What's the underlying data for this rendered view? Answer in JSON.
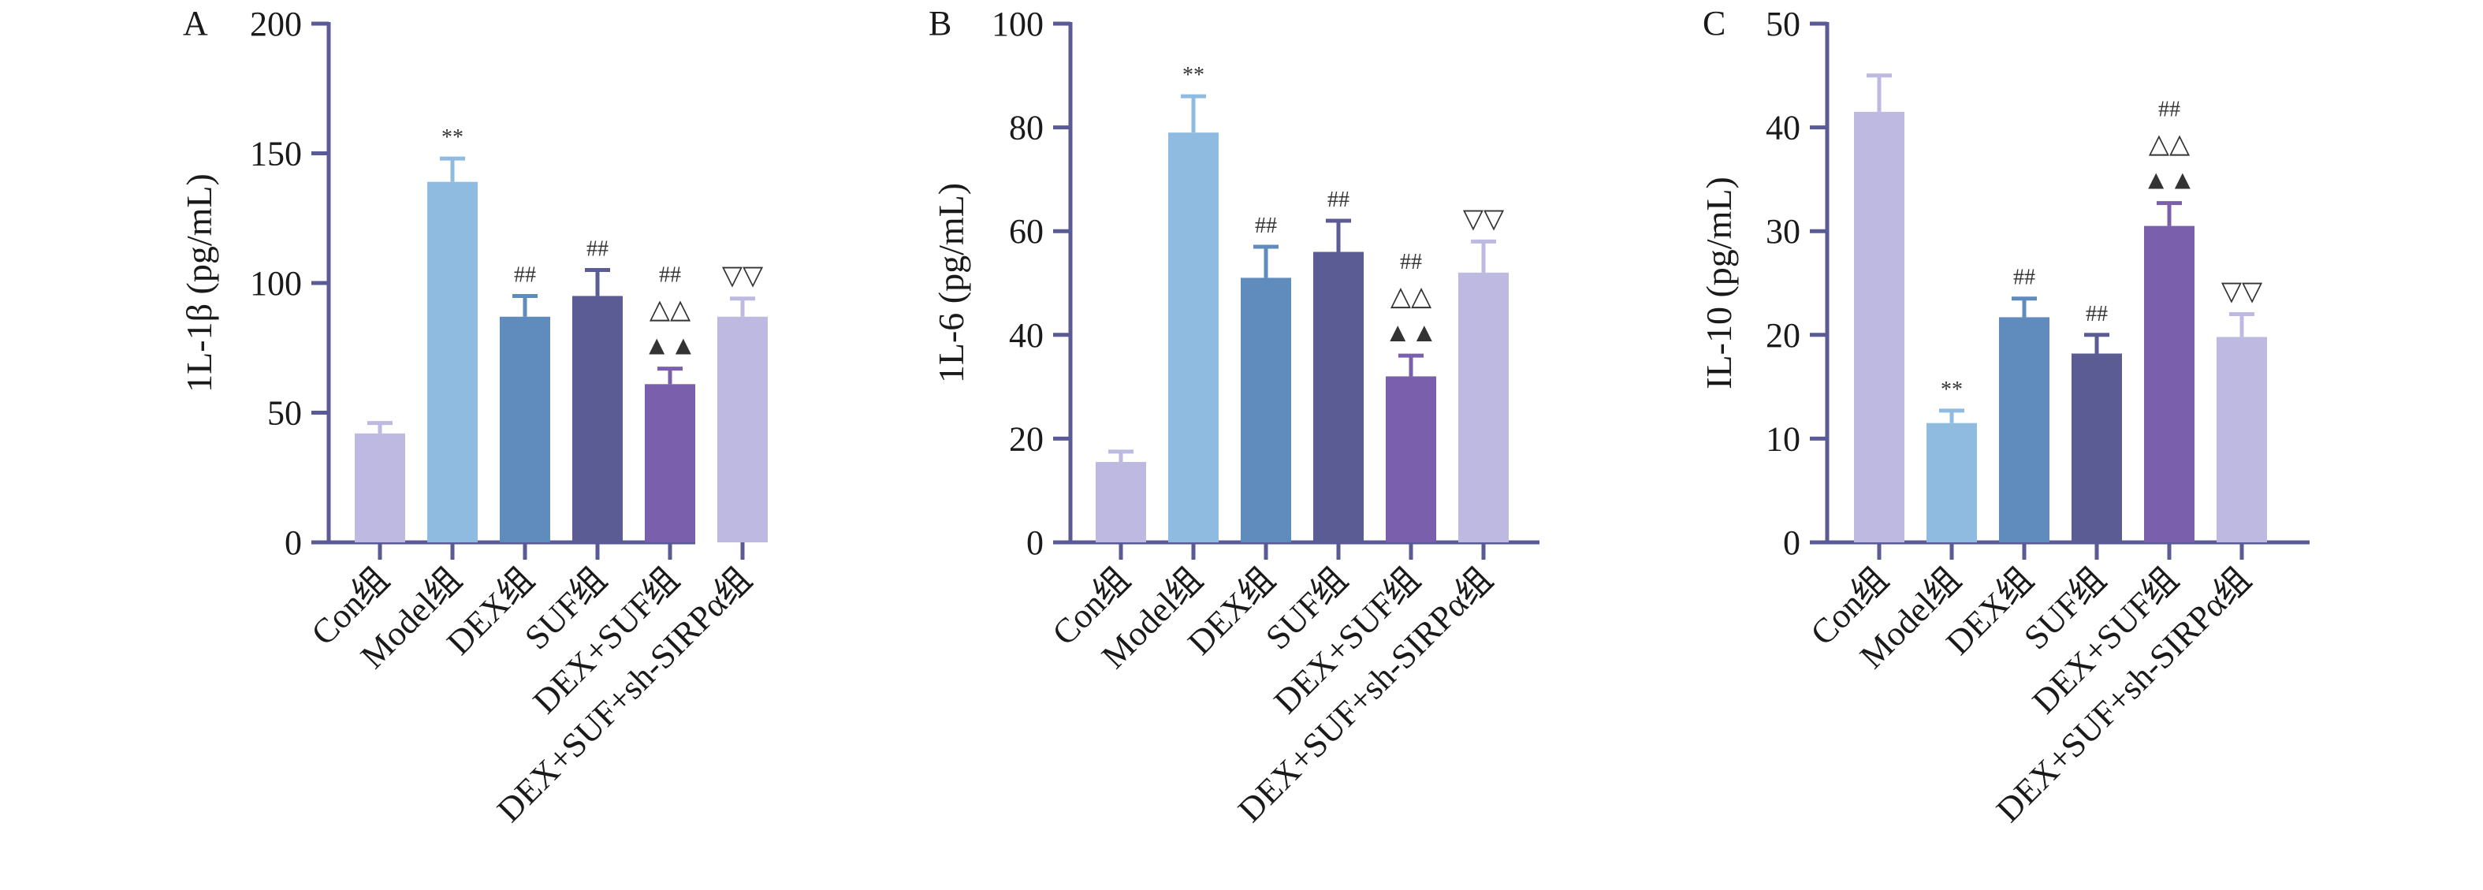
{
  "colors": {
    "axis": "#5a5a96",
    "bars": [
      "#bdb9e0",
      "#8fbbe0",
      "#5f8bbd",
      "#5c5c94",
      "#7a5fad",
      "#bdb9e0"
    ]
  },
  "chart_data": [
    {
      "type": "bar",
      "panel": "A",
      "ylabel": "1L-1β (pg/mL)",
      "ylim": [
        0,
        200
      ],
      "yticks": [
        0,
        50,
        100,
        150,
        200
      ],
      "categories": [
        "Con组",
        "Model组",
        "DEX组",
        "SUF组",
        "DEX+SUF组",
        "DEX+SUF+sh-SIRPα组"
      ],
      "values": [
        42,
        139,
        87,
        95,
        61,
        87
      ],
      "errors": [
        4,
        9,
        8,
        10,
        6,
        7
      ],
      "annotations": [
        [],
        [
          "**"
        ],
        [
          "##"
        ],
        [
          "##"
        ],
        [
          "▲▲",
          "△△",
          "##"
        ],
        [
          "▽▽"
        ]
      ]
    },
    {
      "type": "bar",
      "panel": "B",
      "ylabel": "1L-6 (pg/mL)",
      "ylim": [
        0,
        100
      ],
      "yticks": [
        0,
        20,
        40,
        60,
        80,
        100
      ],
      "categories": [
        "Con组",
        "Model组",
        "DEX组",
        "SUF组",
        "DEX+SUF组",
        "DEX+SUF+sh-SIRPα组"
      ],
      "values": [
        15.5,
        79,
        51,
        56,
        32,
        52
      ],
      "errors": [
        2,
        7,
        6,
        6,
        4,
        6
      ],
      "annotations": [
        [],
        [
          "**"
        ],
        [
          "##"
        ],
        [
          "##"
        ],
        [
          "▲▲",
          "△△",
          "##"
        ],
        [
          "▽▽"
        ]
      ]
    },
    {
      "type": "bar",
      "panel": "C",
      "ylabel": "IL-10 (pg/mL)",
      "ylim": [
        0,
        50
      ],
      "yticks": [
        0,
        10,
        20,
        30,
        40,
        50
      ],
      "categories": [
        "Con组",
        "Model组",
        "DEX组",
        "SUF组",
        "DEX+SUF组",
        "DEX+SUF+sh-SIRPα组"
      ],
      "values": [
        41.5,
        11.5,
        21.7,
        18.2,
        30.5,
        19.8
      ],
      "errors": [
        3.5,
        1.2,
        1.8,
        1.8,
        2.2,
        2.2
      ],
      "annotations": [
        [],
        [
          "**"
        ],
        [
          "##"
        ],
        [
          "##"
        ],
        [
          "▲▲",
          "△△",
          "##"
        ],
        [
          "▽▽"
        ]
      ]
    }
  ]
}
